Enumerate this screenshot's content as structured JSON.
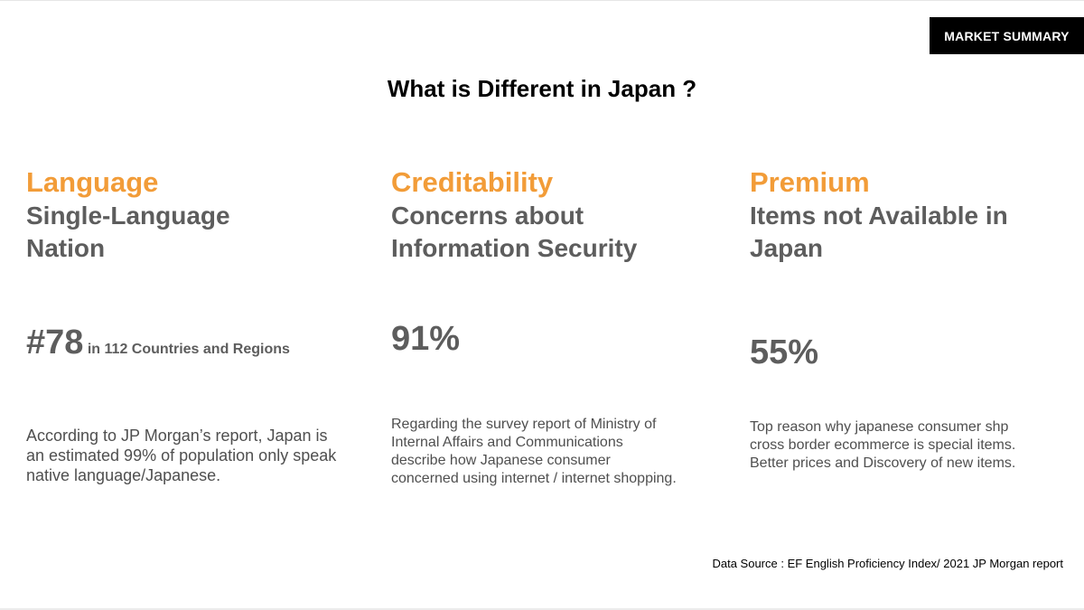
{
  "colors": {
    "accent": "#f29c38",
    "heading": "#5d5d5d",
    "text": "#4f4f4f",
    "badge_bg": "#000000",
    "badge_text": "#ffffff"
  },
  "badge": {
    "label": "MARKET SUMMARY"
  },
  "title": "What is Different in Japan ?",
  "columns": [
    {
      "category": "Language",
      "heading_lines": [
        "Single-Language",
        "Nation"
      ],
      "stat": "#78",
      "stat_suffix": "in 112 Countries and Regions",
      "description": "According to JP Morgan’s report, Japan is an estimated 99% of population only speak native language/Japanese."
    },
    {
      "category": "Creditability",
      "heading_lines": [
        "Concerns about",
        "Information Security"
      ],
      "stat": "91%",
      "stat_suffix": "",
      "description": "Regarding the survey report of Ministry of Internal Affairs and Communications describe how Japanese consumer concerned using internet / internet shopping."
    },
    {
      "category": "Premium",
      "heading_lines": [
        "Items not Available in",
        "Japan"
      ],
      "stat": "55%",
      "stat_suffix": "",
      "description": "Top reason why japanese consumer shp cross border ecommerce is special items. Better prices and Discovery of new items."
    }
  ],
  "source": "Data Source : EF English Proficiency Index/ 2021 JP Morgan report"
}
